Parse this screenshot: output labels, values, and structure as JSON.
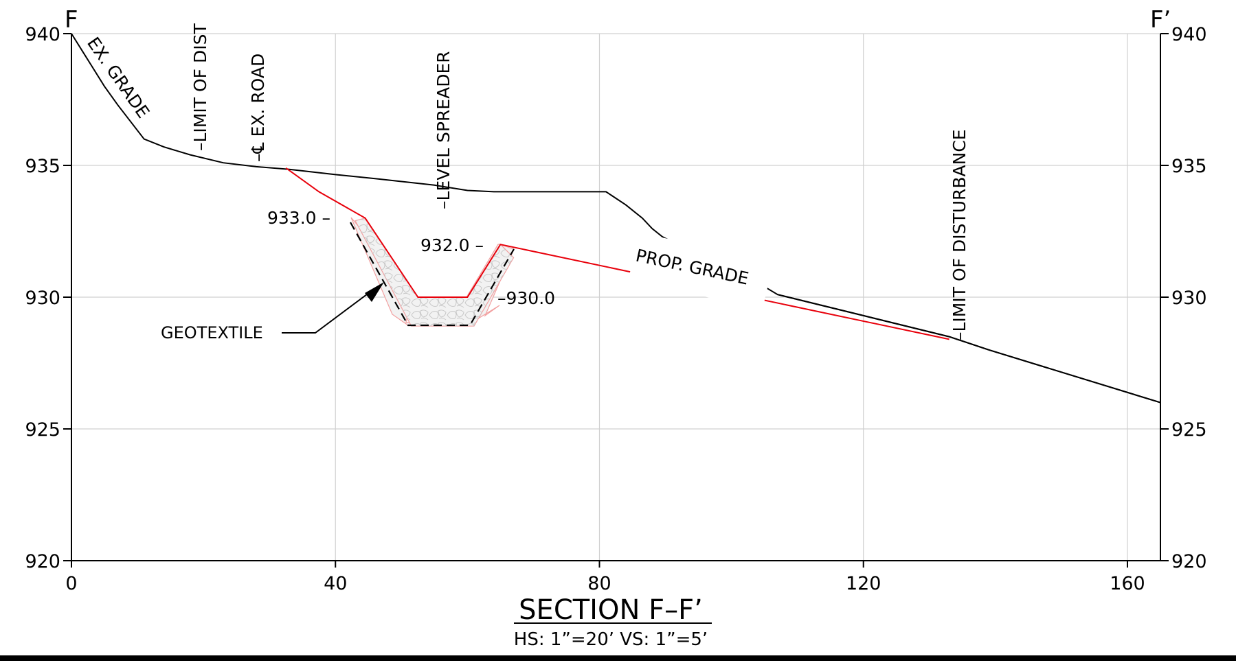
{
  "section": {
    "left_mark": "F",
    "right_mark": "F’",
    "title": "SECTION F–F’",
    "scale_text": "HS:   1”=20’  VS:   1”=5’"
  },
  "axes": {
    "x_ticks": [
      0,
      40,
      80,
      120,
      160
    ],
    "y_ticks": [
      920,
      925,
      930,
      935,
      940
    ],
    "x_range": [
      0,
      165
    ],
    "y_range": [
      920,
      940
    ]
  },
  "annotations": {
    "ex_grade": "EX. GRADE",
    "limit_left": "–LIMIT OF DIST",
    "ex_road": "–℄ EX. ROAD",
    "level_spreader": "–LEVEL SPREADER",
    "limit_right": "–LIMIT OF DISTURBANCE",
    "prop_grade": "PROP. GRADE",
    "geotextile": "GEOTEXTILE",
    "elev_933": "933.0 –",
    "elev_932": "932.0 –",
    "elev_930": "–930.0"
  },
  "profiles": {
    "existing_grade": [
      [
        0,
        940
      ],
      [
        2,
        939.2
      ],
      [
        5,
        938
      ],
      [
        7,
        937.3
      ],
      [
        11,
        936
      ],
      [
        14,
        935.7
      ],
      [
        18,
        935.4
      ],
      [
        23,
        935.1
      ],
      [
        28,
        934.95
      ],
      [
        33,
        934.85
      ],
      [
        40,
        934.65
      ],
      [
        46,
        934.5
      ],
      [
        55,
        934.25
      ],
      [
        60,
        934.05
      ],
      [
        64,
        934
      ],
      [
        81,
        934
      ],
      [
        84,
        933.5
      ],
      [
        86.5,
        933
      ],
      [
        88,
        932.6
      ],
      [
        89.5,
        932.3
      ],
      [
        91,
        932.1
      ],
      [
        92,
        932
      ],
      [
        96,
        931.6
      ],
      [
        101,
        931
      ],
      [
        107,
        930.1
      ],
      [
        120,
        929.3
      ],
      [
        133,
        928.5
      ],
      [
        139,
        928
      ],
      [
        165,
        926
      ]
    ],
    "proposed_grade": [
      [
        32.5,
        934.9
      ],
      [
        37.5,
        934
      ],
      [
        44.5,
        933
      ],
      [
        52.5,
        930
      ],
      [
        60,
        930
      ],
      [
        65,
        932
      ],
      [
        133,
        928.4
      ]
    ]
  },
  "colors": {
    "existing": "#000000",
    "proposed": "#e8000b",
    "grid": "#d0d0d0"
  }
}
